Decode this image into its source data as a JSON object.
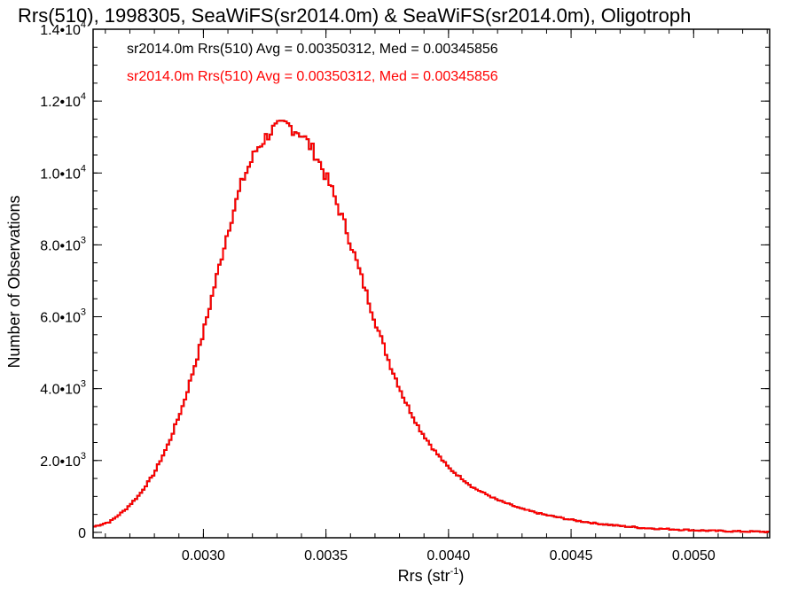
{
  "chart_data": {
    "type": "line",
    "title": "Rrs(510), 1998305, SeaWiFS(sr2014.0m) & SeaWiFS(sr2014.0m), Oligotroph",
    "xlabel": "Rrs (str",
    "xlabel_sup": "-1",
    "xlabel_tail": ")",
    "ylabel": "Number of Observations",
    "xlim": [
      0.00255,
      0.00531
    ],
    "ylim": [
      -150,
      14000
    ],
    "x_ticks": [
      {
        "value": 0.003,
        "label": "0.0030"
      },
      {
        "value": 0.0035,
        "label": "0.0035"
      },
      {
        "value": 0.004,
        "label": "0.0040"
      },
      {
        "value": 0.0045,
        "label": "0.0045"
      },
      {
        "value": 0.005,
        "label": "0.0050"
      }
    ],
    "y_ticks": [
      {
        "value": 0,
        "label": "0",
        "sup": ""
      },
      {
        "value": 2000,
        "label": "2.0•10",
        "sup": "3"
      },
      {
        "value": 4000,
        "label": "4.0•10",
        "sup": "3"
      },
      {
        "value": 6000,
        "label": "6.0•10",
        "sup": "3"
      },
      {
        "value": 8000,
        "label": "8.0•10",
        "sup": "3"
      },
      {
        "value": 10000,
        "label": "1.0•10",
        "sup": "4"
      },
      {
        "value": 12000,
        "label": "1.2•10",
        "sup": "4"
      },
      {
        "value": 14000,
        "label": "1.4•10",
        "sup": "4"
      }
    ],
    "x_minor_step": 0.0001,
    "y_minor_step": 500,
    "legend_placement": "top-left",
    "series": [
      {
        "name": "sr2014.0m Rrs(510) Avg = 0.00350312, Med = 0.00345856",
        "color": "#000000",
        "profile": [
          [
            0.00255,
            150
          ],
          [
            0.00262,
            300
          ],
          [
            0.00268,
            620
          ],
          [
            0.00274,
            1050
          ],
          [
            0.0028,
            1650
          ],
          [
            0.00286,
            2500
          ],
          [
            0.00292,
            3600
          ],
          [
            0.00298,
            5000
          ],
          [
            0.00304,
            6700
          ],
          [
            0.0031,
            8400
          ],
          [
            0.00316,
            9800
          ],
          [
            0.00322,
            10700
          ],
          [
            0.00328,
            11200
          ],
          [
            0.00334,
            11350
          ],
          [
            0.0034,
            11100
          ],
          [
            0.00346,
            10500
          ],
          [
            0.00352,
            9600
          ],
          [
            0.00358,
            8500
          ],
          [
            0.00364,
            7200
          ],
          [
            0.0037,
            5900
          ],
          [
            0.00376,
            4700
          ],
          [
            0.00382,
            3700
          ],
          [
            0.00388,
            2900
          ],
          [
            0.00394,
            2300
          ],
          [
            0.004,
            1800
          ],
          [
            0.0041,
            1250
          ],
          [
            0.0042,
            900
          ],
          [
            0.0043,
            650
          ],
          [
            0.0044,
            480
          ],
          [
            0.0045,
            350
          ],
          [
            0.0046,
            250
          ],
          [
            0.0047,
            180
          ],
          [
            0.0048,
            120
          ],
          [
            0.0049,
            90
          ],
          [
            0.005,
            60
          ],
          [
            0.0051,
            40
          ],
          [
            0.0052,
            25
          ],
          [
            0.00531,
            15
          ]
        ]
      },
      {
        "name": "sr2014.0m Rrs(510) Avg = 0.00350312, Med = 0.00345856",
        "color": "#ff0000",
        "profile": [
          [
            0.00255,
            150
          ],
          [
            0.00262,
            300
          ],
          [
            0.00268,
            620
          ],
          [
            0.00274,
            1050
          ],
          [
            0.0028,
            1650
          ],
          [
            0.00286,
            2500
          ],
          [
            0.00292,
            3600
          ],
          [
            0.00298,
            5000
          ],
          [
            0.00304,
            6700
          ],
          [
            0.0031,
            8400
          ],
          [
            0.00316,
            9800
          ],
          [
            0.00322,
            10700
          ],
          [
            0.00328,
            11200
          ],
          [
            0.00334,
            11350
          ],
          [
            0.0034,
            11100
          ],
          [
            0.00346,
            10500
          ],
          [
            0.00352,
            9600
          ],
          [
            0.00358,
            8500
          ],
          [
            0.00364,
            7200
          ],
          [
            0.0037,
            5900
          ],
          [
            0.00376,
            4700
          ],
          [
            0.00382,
            3700
          ],
          [
            0.00388,
            2900
          ],
          [
            0.00394,
            2300
          ],
          [
            0.004,
            1800
          ],
          [
            0.0041,
            1250
          ],
          [
            0.0042,
            900
          ],
          [
            0.0043,
            650
          ],
          [
            0.0044,
            480
          ],
          [
            0.0045,
            350
          ],
          [
            0.0046,
            250
          ],
          [
            0.0047,
            180
          ],
          [
            0.0048,
            120
          ],
          [
            0.0049,
            90
          ],
          [
            0.005,
            60
          ],
          [
            0.0051,
            40
          ],
          [
            0.0052,
            25
          ],
          [
            0.00531,
            15
          ]
        ]
      }
    ]
  }
}
